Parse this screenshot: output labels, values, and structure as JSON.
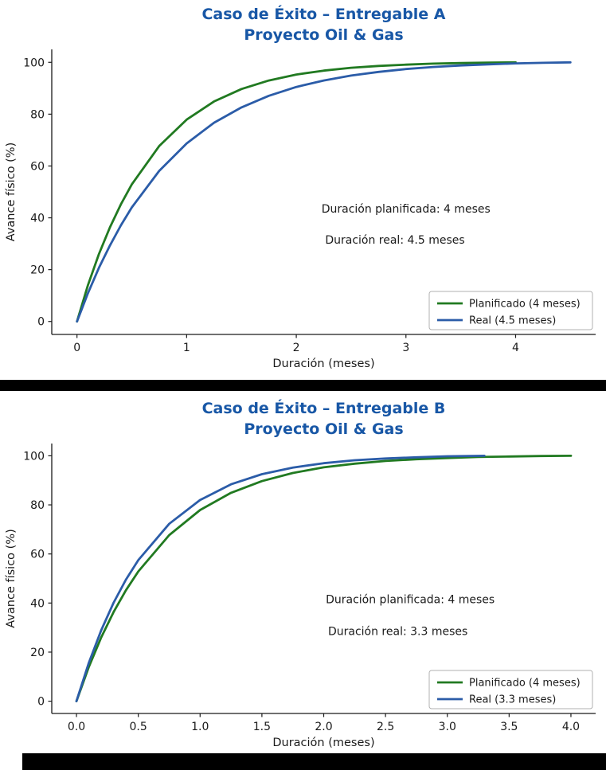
{
  "page": {
    "background": "#ffffff",
    "separator_color": "#000000",
    "title_color": "#1857a6"
  },
  "chart_data": [
    {
      "type": "line",
      "title_line1": "Caso de Éxito – Entregable A",
      "title_line2": "Proyecto Oil & Gas",
      "xlabel": "Duración (meses)",
      "ylabel": "Avance físico (%)",
      "xlim": [
        -0.23,
        4.73
      ],
      "ylim": [
        -5,
        105
      ],
      "grid": false,
      "legend_position": "lower right",
      "xticks": [
        0,
        1,
        2,
        3,
        4
      ],
      "xtick_labels": [
        "0",
        "1",
        "2",
        "3",
        "4"
      ],
      "yticks": [
        0,
        20,
        40,
        60,
        80,
        100
      ],
      "ytick_labels": [
        "0",
        "20",
        "40",
        "60",
        "80",
        "100"
      ],
      "series": [
        {
          "key": "planificado",
          "name": "Planificado (4 meses)",
          "color": "#217a21",
          "x": [
            0,
            0.1,
            0.2,
            0.3,
            0.4,
            0.5,
            0.75,
            1,
            1.25,
            1.5,
            1.75,
            2,
            2.25,
            2.5,
            2.75,
            3,
            3.25,
            3.5,
            3.75,
            4
          ],
          "y": [
            0,
            14.0,
            26.0,
            36.3,
            45.2,
            52.9,
            67.7,
            77.9,
            84.9,
            89.7,
            93.0,
            95.3,
            96.8,
            97.9,
            98.6,
            99.1,
            99.5,
            99.7,
            99.9,
            100
          ]
        },
        {
          "key": "real",
          "name": "Real (4.5 meses)",
          "color": "#2b5ca8",
          "x": [
            0,
            0.1,
            0.2,
            0.3,
            0.4,
            0.5,
            0.75,
            1,
            1.25,
            1.5,
            1.75,
            2,
            2.25,
            2.5,
            2.75,
            3,
            3.25,
            3.5,
            3.75,
            4,
            4.25,
            4.5
          ],
          "y": [
            0,
            10.9,
            20.7,
            29.3,
            37.1,
            44.0,
            58.1,
            68.7,
            76.7,
            82.6,
            87.1,
            90.5,
            93.0,
            94.9,
            96.3,
            97.4,
            98.2,
            98.8,
            99.2,
            99.6,
            99.8,
            100
          ]
        }
      ],
      "annotations": [
        {
          "text": "Duración planificada: 4 meses",
          "x": 3.0,
          "y": 42
        },
        {
          "text": "Duración real: 4.5 meses",
          "x": 2.9,
          "y": 30
        }
      ]
    },
    {
      "type": "line",
      "title_line1": "Caso de Éxito – Entregable B",
      "title_line2": "Proyecto Oil & Gas",
      "xlabel": "Duración (meses)",
      "ylabel": "Avance físico (%)",
      "xlim": [
        -0.2,
        4.2
      ],
      "ylim": [
        -5,
        105
      ],
      "grid": false,
      "legend_position": "lower right",
      "xticks": [
        0,
        0.5,
        1,
        1.5,
        2,
        2.5,
        3,
        3.5,
        4
      ],
      "xtick_labels": [
        "0.0",
        "0.5",
        "1.0",
        "1.5",
        "2.0",
        "2.5",
        "3.0",
        "3.5",
        "4.0"
      ],
      "yticks": [
        0,
        20,
        40,
        60,
        80,
        100
      ],
      "ytick_labels": [
        "0",
        "20",
        "40",
        "60",
        "80",
        "100"
      ],
      "series": [
        {
          "key": "planificado",
          "name": "Planificado (4 meses)",
          "color": "#217a21",
          "x": [
            0,
            0.1,
            0.2,
            0.3,
            0.4,
            0.5,
            0.75,
            1,
            1.25,
            1.5,
            1.75,
            2,
            2.25,
            2.5,
            2.75,
            3,
            3.25,
            3.5,
            3.75,
            4
          ],
          "y": [
            0,
            14.0,
            26.0,
            36.3,
            45.2,
            52.9,
            67.7,
            77.9,
            84.9,
            89.7,
            93.0,
            95.3,
            96.8,
            97.9,
            98.6,
            99.1,
            99.5,
            99.7,
            99.9,
            100
          ]
        },
        {
          "key": "real",
          "name": "Real (3.3 meses)",
          "color": "#2b5ca8",
          "x": [
            0,
            0.1,
            0.2,
            0.3,
            0.4,
            0.5,
            0.75,
            1,
            1.25,
            1.5,
            1.75,
            2,
            2.25,
            2.5,
            2.75,
            3,
            3.3
          ],
          "y": [
            0,
            15.7,
            28.9,
            40.1,
            49.5,
            57.5,
            72.3,
            82.0,
            88.4,
            92.5,
            95.2,
            97.0,
            98.2,
            98.9,
            99.4,
            99.8,
            100
          ]
        }
      ],
      "annotations": [
        {
          "text": "Duración planificada: 4 meses",
          "x": 2.7,
          "y": 40
        },
        {
          "text": "Duración real: 3.3 meses",
          "x": 2.6,
          "y": 27
        }
      ]
    }
  ]
}
